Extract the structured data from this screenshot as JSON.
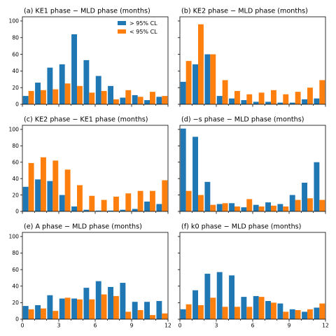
{
  "colors": {
    "above": "#1f77b4",
    "below": "#ff7f0e"
  },
  "legend": {
    "above_label": "> 95% CL",
    "below_label": "< 95% CL",
    "placement": "upper-right of panel a"
  },
  "chart_data": [
    {
      "type": "bar",
      "title": "(a)  KE1 phase − MLD phase (months)",
      "x": [
        0.5,
        1.5,
        2.5,
        3.5,
        4.5,
        5.5,
        6.5,
        7.5,
        8.5,
        9.5,
        10.5,
        11.5
      ],
      "series": [
        {
          "name": "> 95% CL",
          "values": [
            10,
            26,
            44,
            48,
            84,
            53,
            34,
            22,
            8,
            11,
            5,
            9
          ]
        },
        {
          "name": "< 95% CL",
          "values": [
            16,
            17,
            18,
            25,
            22,
            14,
            16,
            6,
            17,
            9,
            15,
            10
          ]
        }
      ],
      "ylim": [
        0,
        105
      ],
      "yticks": [
        "0",
        "20",
        "40",
        "60",
        "80",
        "100"
      ],
      "xlim": [
        0,
        12
      ],
      "xticks": [
        "0",
        "3",
        "6",
        "9",
        "12"
      ]
    },
    {
      "type": "bar",
      "title": "(b)  KE2 phase − MLD phase (months)",
      "x": [
        0.5,
        1.5,
        2.5,
        3.5,
        4.5,
        5.5,
        6.5,
        7.5,
        8.5,
        9.5,
        10.5,
        11.5
      ],
      "series": [
        {
          "name": "> 95% CL",
          "values": [
            27,
            48,
            60,
            10,
            7,
            5,
            3,
            3,
            2,
            2,
            6,
            7
          ]
        },
        {
          "name": "< 95% CL",
          "values": [
            52,
            96,
            60,
            29,
            16,
            12,
            14,
            17,
            12,
            15,
            20,
            29
          ]
        }
      ],
      "ylim": [
        0,
        105
      ],
      "yticks": [
        "0",
        "20",
        "40",
        "60",
        "80",
        "100"
      ],
      "xlim": [
        0,
        12
      ],
      "xticks": [
        "0",
        "3",
        "6",
        "9",
        "12"
      ]
    },
    {
      "type": "bar",
      "title": "(c)  KE2 phase − KE1 phase (months)",
      "x": [
        0.5,
        1.5,
        2.5,
        3.5,
        4.5,
        5.5,
        6.5,
        7.5,
        8.5,
        9.5,
        10.5,
        11.5
      ],
      "series": [
        {
          "name": "> 95% CL",
          "values": [
            30,
            39,
            37,
            20,
            6,
            2,
            1,
            1,
            2,
            3,
            12,
            9
          ]
        },
        {
          "name": "< 95% CL",
          "values": [
            59,
            66,
            62,
            51,
            32,
            19,
            14,
            18,
            22,
            25,
            25,
            38
          ]
        }
      ],
      "ylim": [
        0,
        105
      ],
      "yticks": [
        "0",
        "20",
        "40",
        "60",
        "80",
        "100"
      ],
      "xlim": [
        0,
        12
      ],
      "xticks": [
        "0",
        "3",
        "6",
        "9",
        "12"
      ]
    },
    {
      "type": "bar",
      "title": "(d)  −s phase − MLD phase (months)",
      "x": [
        0.5,
        1.5,
        2.5,
        3.5,
        4.5,
        5.5,
        6.5,
        7.5,
        8.5,
        9.5,
        10.5,
        11.5
      ],
      "series": [
        {
          "name": "> 95% CL",
          "values": [
            101,
            91,
            36,
            9,
            10,
            5,
            8,
            11,
            9,
            20,
            35,
            60
          ]
        },
        {
          "name": "< 95% CL",
          "values": [
            25,
            20,
            8,
            10,
            6,
            15,
            6,
            7,
            6,
            14,
            16,
            14
          ]
        }
      ],
      "ylim": [
        0,
        105
      ],
      "yticks": [
        "0",
        "20",
        "40",
        "60",
        "80",
        "100"
      ],
      "xlim": [
        0,
        12
      ],
      "xticks": [
        "0",
        "3",
        "6",
        "9",
        "12"
      ]
    },
    {
      "type": "bar",
      "title": "(e)  A phase − MLD phase (months)",
      "x": [
        0.5,
        1.5,
        2.5,
        3.5,
        4.5,
        5.5,
        6.5,
        7.5,
        8.5,
        9.5,
        10.5,
        11.5
      ],
      "series": [
        {
          "name": "> 95% CL",
          "values": [
            16,
            17,
            29,
            25,
            25,
            38,
            46,
            39,
            44,
            21,
            21,
            22
          ]
        },
        {
          "name": "< 95% CL",
          "values": [
            12,
            13,
            10,
            26,
            24,
            24,
            30,
            28,
            9,
            11,
            5,
            7
          ]
        }
      ],
      "ylim": [
        0,
        105
      ],
      "yticks": [
        "0",
        "20",
        "40",
        "60",
        "80",
        "100"
      ],
      "xlim": [
        0,
        12
      ],
      "xticks": [
        "0",
        "3",
        "6",
        "9",
        "12"
      ]
    },
    {
      "type": "bar",
      "title": "(f)  k0 phase − MLD phase (months)",
      "x": [
        0.5,
        1.5,
        2.5,
        3.5,
        4.5,
        5.5,
        6.5,
        7.5,
        8.5,
        9.5,
        10.5,
        11.5
      ],
      "series": [
        {
          "name": "> 95% CL",
          "values": [
            12,
            35,
            55,
            57,
            53,
            27,
            28,
            22,
            19,
            12,
            9,
            14
          ]
        },
        {
          "name": "< 95% CL",
          "values": [
            18,
            17,
            26,
            15,
            15,
            15,
            27,
            20,
            9,
            11,
            12,
            19
          ]
        }
      ],
      "ylim": [
        0,
        105
      ],
      "yticks": [
        "0",
        "20",
        "40",
        "60",
        "80",
        "100"
      ],
      "xlim": [
        0,
        12
      ],
      "xticks": [
        "0",
        "3",
        "6",
        "9",
        "12"
      ]
    }
  ]
}
